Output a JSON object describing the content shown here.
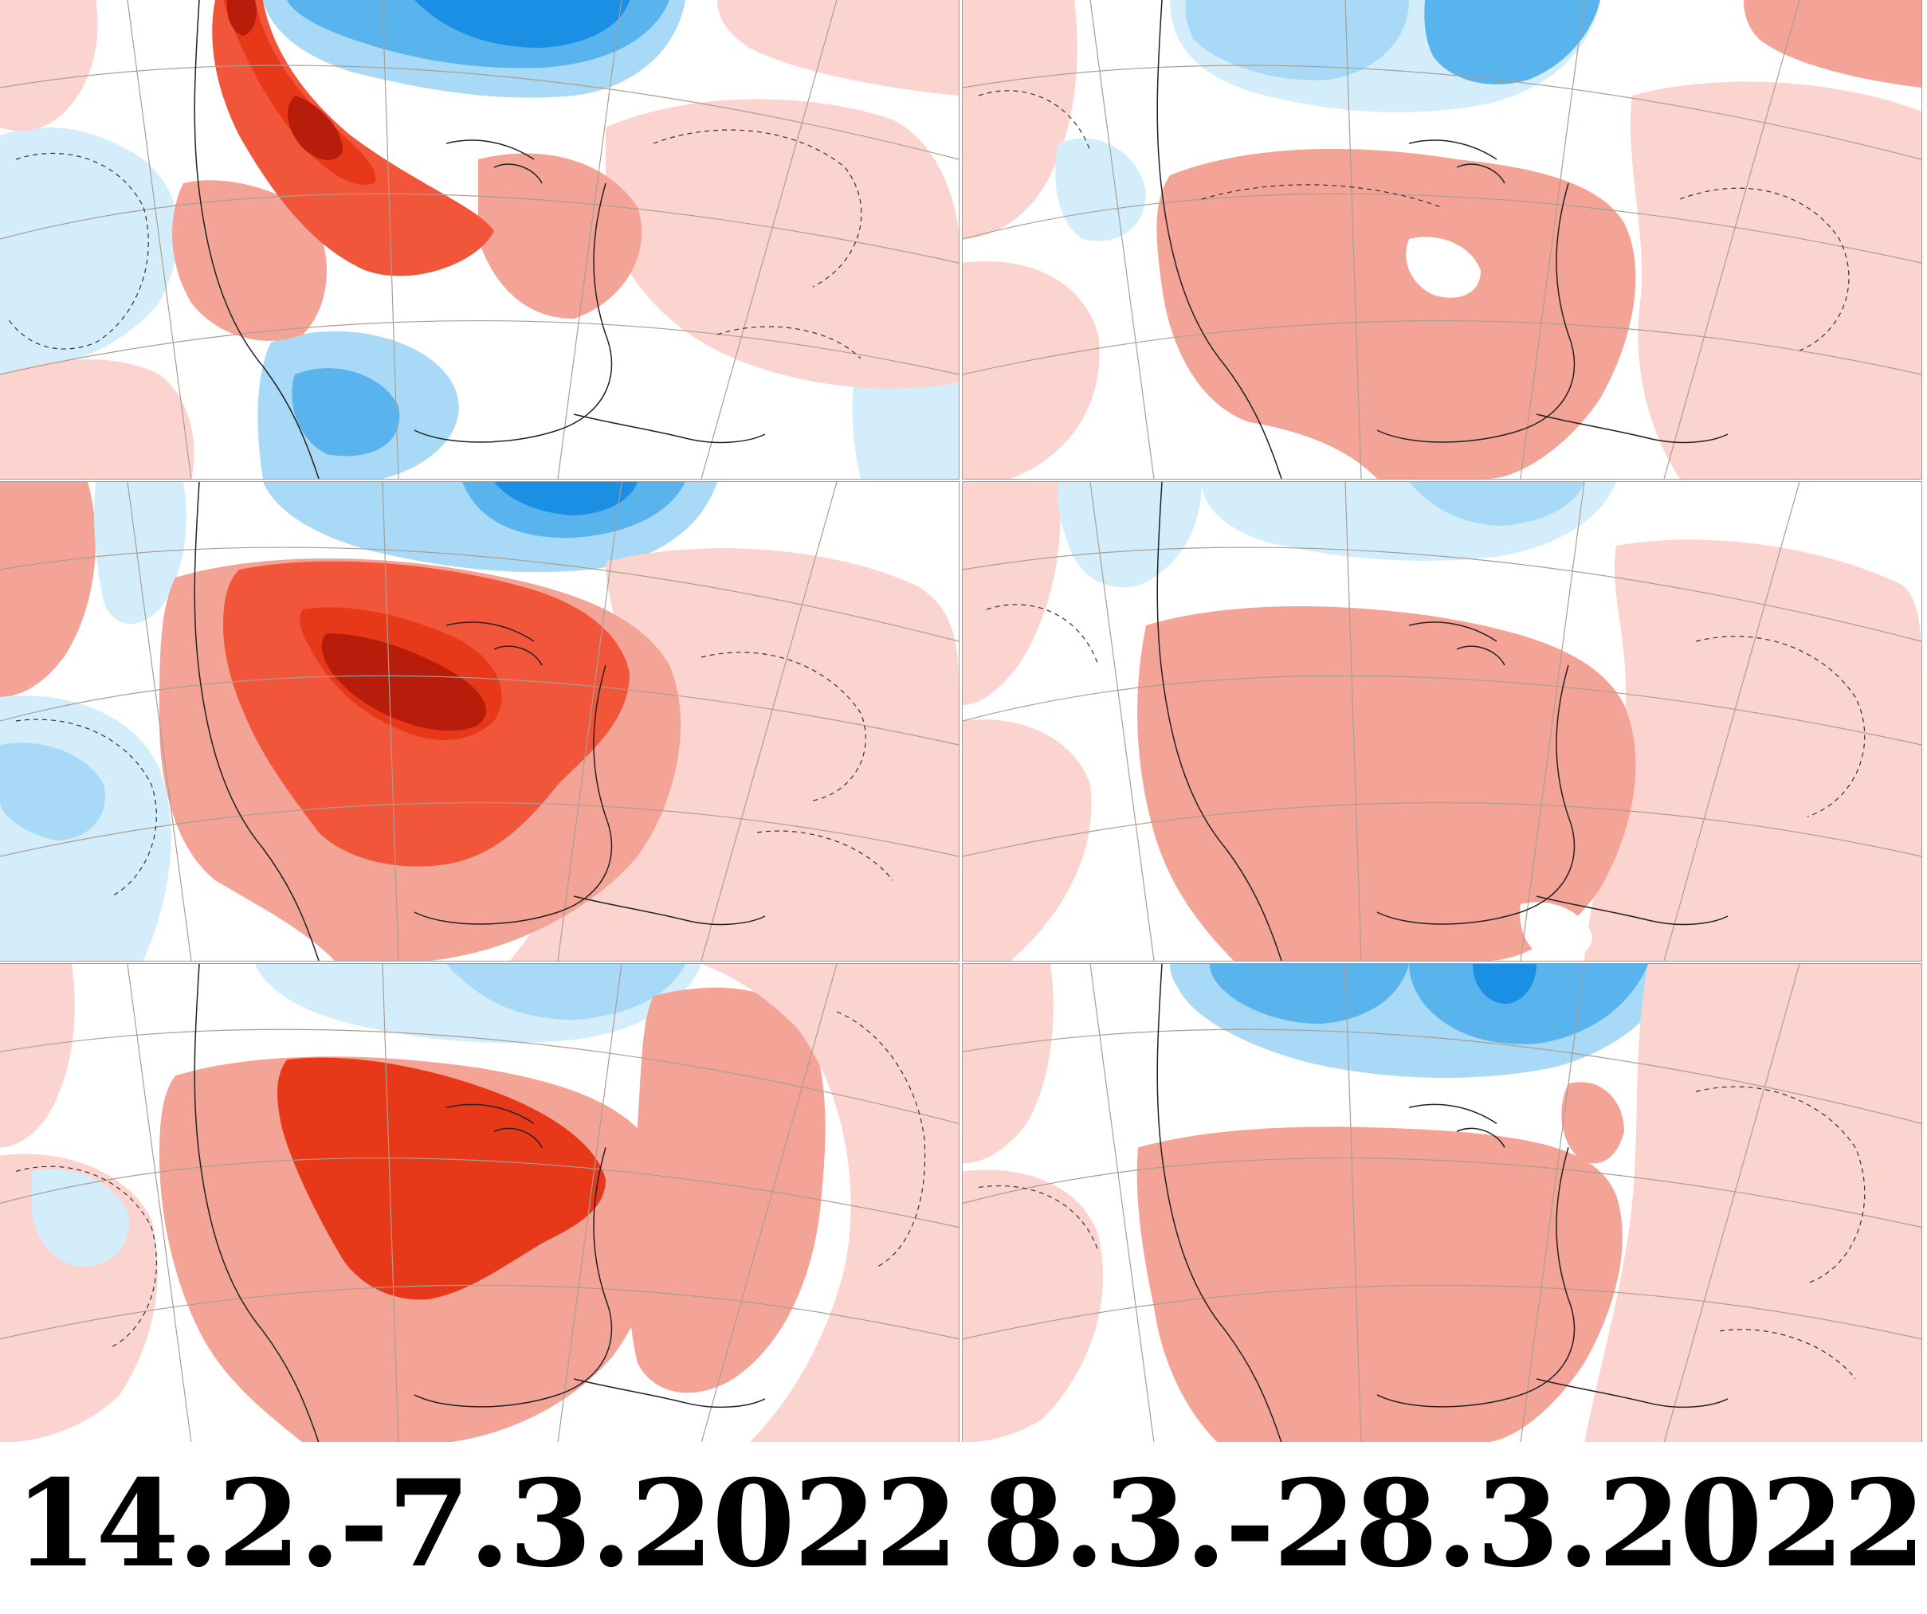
{
  "colors": {
    "cold_strong": "#1a8fe3",
    "cold_mid": "#59b4ee",
    "cold_light": "#a8d9f7",
    "cold_pale": "#d4edfb",
    "warm_pale": "#fbd4cf",
    "warm_light": "#f4a496",
    "warm_mid": "#f2563a",
    "warm_strong": "#e8381a",
    "warm_dark": "#b81c0a",
    "background": "#ffffff"
  },
  "labels": {
    "left": "14.2.-7.3.2022",
    "right": "8.3.-28.3.2022"
  },
  "panels": [
    {
      "id": "week1-period1",
      "column": "14.2.-7.3.2022",
      "row": 1,
      "intensity": "strong"
    },
    {
      "id": "week1-period2",
      "column": "8.3.-28.3.2022",
      "row": 1,
      "intensity": "moderate"
    },
    {
      "id": "week2-period1",
      "column": "14.2.-7.3.2022",
      "row": 2,
      "intensity": "very-strong"
    },
    {
      "id": "week2-period2",
      "column": "8.3.-28.3.2022",
      "row": 2,
      "intensity": "moderate"
    },
    {
      "id": "week3-period1",
      "column": "14.2.-7.3.2022",
      "row": 3,
      "intensity": "strong"
    },
    {
      "id": "week3-period2",
      "column": "8.3.-28.3.2022",
      "row": 3,
      "intensity": "moderate"
    }
  ]
}
